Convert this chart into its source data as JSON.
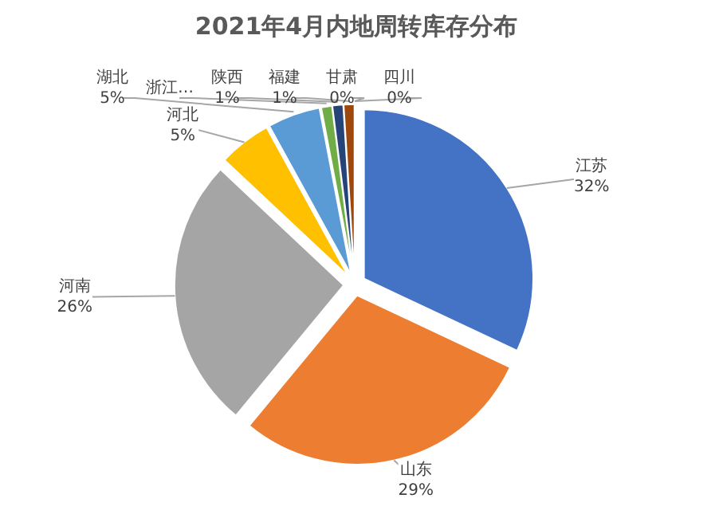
{
  "chart_data": {
    "type": "pie",
    "title": "2021年4月内地周转库存分布",
    "categories": [
      "江苏",
      "山东",
      "河南",
      "河北",
      "湖北",
      "浙江…",
      "陕西",
      "福建",
      "甘肃",
      "四川"
    ],
    "values": [
      32,
      29,
      26,
      5,
      5,
      1,
      1,
      1,
      0,
      0
    ],
    "value_labels": [
      "32%",
      "29%",
      "26%",
      "5%",
      "5%",
      null,
      "1%",
      "1%",
      "0%",
      "0%"
    ],
    "colors": [
      "#4472c4",
      "#ed7d31",
      "#a5a5a5",
      "#ffc000",
      "#5b9bd5",
      "#70ad47",
      "#264478",
      "#9e480e",
      "#636363",
      "#997300"
    ]
  }
}
